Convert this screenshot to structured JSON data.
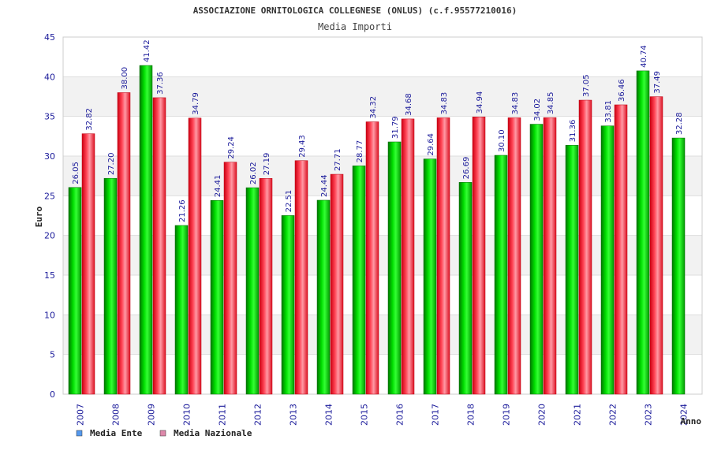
{
  "chart_data": {
    "type": "bar",
    "title": "ASSOCIAZIONE ORNITOLOGICA COLLEGNESE (ONLUS) (c.f.95577210016)",
    "subtitle": "Media Importi",
    "xlabel": "Anno",
    "ylabel": "Euro",
    "ylim": [
      0,
      45
    ],
    "ytick_step": 5,
    "grid": true,
    "legend_position": "bottom-left",
    "categories": [
      "2007",
      "2008",
      "2009",
      "2010",
      "2011",
      "2012",
      "2013",
      "2014",
      "2015",
      "2016",
      "2017",
      "2018",
      "2019",
      "2020",
      "2021",
      "2022",
      "2023",
      "2024"
    ],
    "series": [
      {
        "name": "Media Ente",
        "color": "#00cc00",
        "legend_color": "#5599ee",
        "values": [
          26.05,
          27.2,
          41.42,
          21.26,
          24.41,
          26.02,
          22.51,
          24.44,
          28.77,
          31.79,
          29.64,
          26.69,
          30.1,
          34.02,
          31.36,
          33.81,
          40.74,
          32.28
        ],
        "labels": [
          "26.05",
          "27.20",
          "41.42",
          "21.26",
          "24.41",
          "26.02",
          "22.51",
          "24.44",
          "28.77",
          "31.79",
          "29.64",
          "26.69",
          "30.10",
          "34.02",
          "31.36",
          "33.81",
          "40.74",
          "32.28"
        ]
      },
      {
        "name": "Media Nazionale",
        "color": "#ee2233",
        "legend_color": "#dd88aa",
        "values": [
          32.82,
          38.0,
          37.36,
          34.79,
          29.24,
          27.19,
          29.43,
          27.71,
          34.32,
          34.68,
          34.83,
          34.94,
          34.83,
          34.85,
          37.05,
          36.46,
          37.49,
          null
        ],
        "labels": [
          "32.82",
          "38.00",
          "37.36",
          "34.79",
          "29.24",
          "27.19",
          "29.43",
          "27.71",
          "34.32",
          "34.68",
          "34.83",
          "34.94",
          "34.83",
          "34.85",
          "37.05",
          "36.46",
          "37.49",
          ""
        ]
      }
    ]
  }
}
